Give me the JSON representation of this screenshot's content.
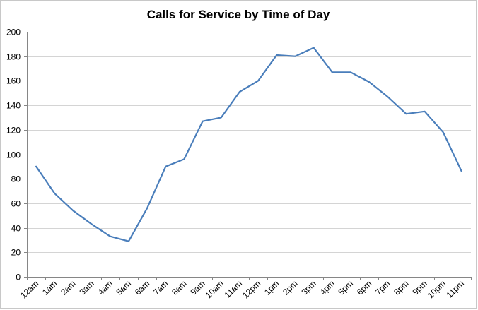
{
  "chart_data": {
    "type": "line",
    "title": "Calls for Service by Time of Day",
    "xlabel": "",
    "ylabel": "",
    "ylim": [
      0,
      200
    ],
    "y_ticks": [
      0,
      20,
      40,
      60,
      80,
      100,
      120,
      140,
      160,
      180,
      200
    ],
    "grid": true,
    "legend": "none",
    "categories": [
      "12am",
      "1am",
      "2am",
      "3am",
      "4am",
      "5am",
      "6am",
      "7am",
      "8am",
      "9am",
      "10am",
      "11am",
      "12pm",
      "1pm",
      "2pm",
      "3pm",
      "4pm",
      "5pm",
      "6pm",
      "7pm",
      "8pm",
      "9pm",
      "10pm",
      "11pm"
    ],
    "series": [
      {
        "values": [
          90,
          68,
          54,
          43,
          33,
          29,
          56,
          90,
          96,
          127,
          130,
          151,
          160,
          181,
          180,
          187,
          167,
          167,
          159,
          147,
          133,
          135,
          118,
          86
        ],
        "color": "#4a7ebb"
      }
    ]
  }
}
